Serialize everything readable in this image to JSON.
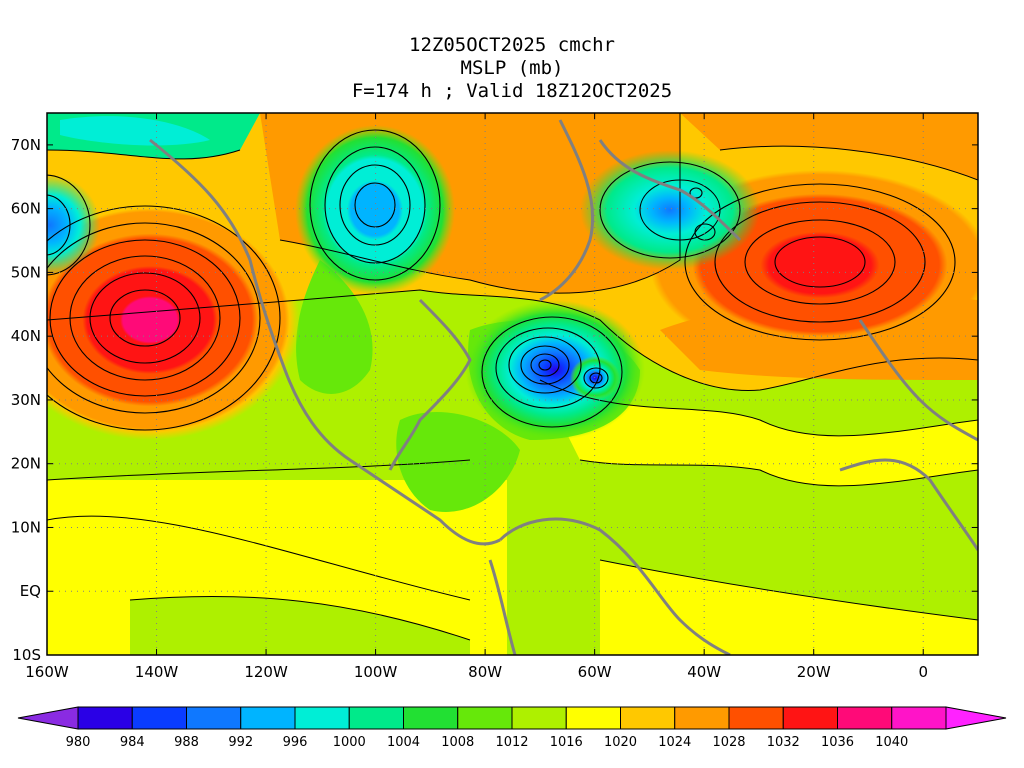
{
  "header": {
    "line1": "12Z05OCT2025 cmchr",
    "line2": "MSLP (mb)",
    "line3": "F=174 h ; Valid 18Z12OCT2025"
  },
  "map": {
    "lat_labels": [
      "70N",
      "60N",
      "50N",
      "40N",
      "30N",
      "20N",
      "10N",
      "EQ",
      "10S"
    ],
    "lon_labels": [
      "160W",
      "140W",
      "120W",
      "100W",
      "80W",
      "60W",
      "40W",
      "20W",
      "0"
    ],
    "lat_range": [
      -10,
      75
    ],
    "lon_range": [
      -160,
      10
    ],
    "pressure_centers": [
      {
        "kind": "high",
        "label": "1036+",
        "lon": -139,
        "lat": 43
      },
      {
        "kind": "high",
        "label": "1028+",
        "lon": -18,
        "lat": 51
      },
      {
        "kind": "low",
        "label": "992",
        "lon": -100,
        "lat": 60
      },
      {
        "kind": "low",
        "label": "980",
        "lon": -68,
        "lat": 35.5
      },
      {
        "kind": "low",
        "label": "984",
        "lon": -60,
        "lat": 33
      },
      {
        "kind": "low",
        "label": "996",
        "lon": -40,
        "lat": 62
      },
      {
        "kind": "low",
        "label": "996",
        "lon": -40,
        "lat": 56
      },
      {
        "kind": "low",
        "label": "992",
        "lon": -160,
        "lat": 57
      }
    ]
  },
  "colorbar": {
    "title": "",
    "labels": [
      "980",
      "984",
      "988",
      "992",
      "996",
      "1000",
      "1004",
      "1008",
      "1012",
      "1016",
      "1020",
      "1024",
      "1028",
      "1032",
      "1036",
      "1040"
    ],
    "colors": [
      "#2a00e6",
      "#0a3cff",
      "#0f78ff",
      "#00b4ff",
      "#00eed6",
      "#00ea8a",
      "#22e033",
      "#66e80a",
      "#aef000",
      "#ffff00",
      "#ffc800",
      "#ff9a00",
      "#ff5000",
      "#ff1414",
      "#ff0a78",
      "#ff14c8"
    ],
    "under_color": "#8a2be2",
    "over_color": "#ff22ff"
  }
}
